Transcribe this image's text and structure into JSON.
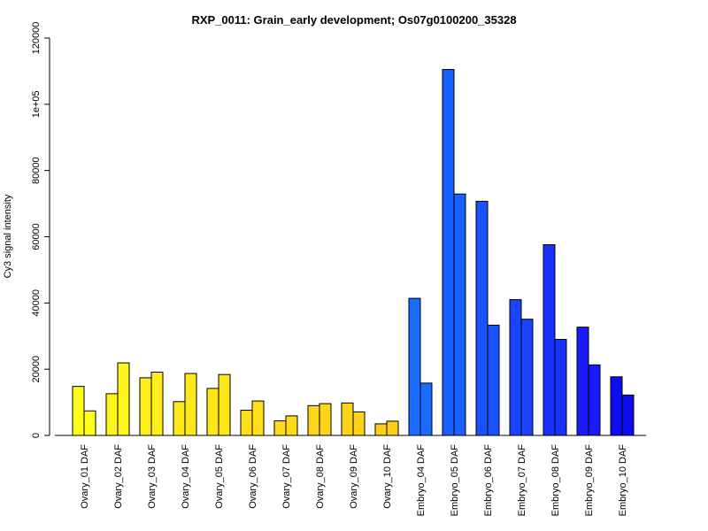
{
  "chart_data": {
    "type": "bar",
    "title": "RXP_0011: Grain_early development; Os07g0100200_35328",
    "xlabel": "",
    "ylabel": "Cy3 signal intensity",
    "ylim": [
      0,
      120000
    ],
    "yticks": [
      0,
      20000,
      40000,
      60000,
      80000,
      100000,
      120000
    ],
    "ytick_labels": [
      "0",
      "20000",
      "40000",
      "60000",
      "80000",
      "1e+05",
      "120000"
    ],
    "categories": [
      "Ovary_01 DAF",
      "Ovary_02 DAF",
      "Ovary_03 DAF",
      "Ovary_04 DAF",
      "Ovary_05 DAF",
      "Ovary_06 DAF",
      "Ovary_07 DAF",
      "Ovary_08 DAF",
      "Ovary_09 DAF",
      "Ovary_10 DAF",
      "Embryo_04 DAF",
      "Embryo_05 DAF",
      "Embryo_06 DAF",
      "Embryo_07 DAF",
      "Embryo_08 DAF",
      "Embryo_09 DAF",
      "Embryo_10 DAF"
    ],
    "colors": [
      "#FFFF1A",
      "#FFF51C",
      "#FFEE1C",
      "#FFE81C",
      "#FFE51C",
      "#FFDF1C",
      "#FFDA1C",
      "#FFD51C",
      "#FFD21C",
      "#FFCC1A",
      "#1A6BFF",
      "#1A5FFF",
      "#1A52FF",
      "#1A43FF",
      "#1A30FF",
      "#1A1AFF",
      "#0D0DF0"
    ],
    "series": [
      {
        "values": [
          14800,
          12600,
          17400,
          10200,
          14200,
          7600,
          4400,
          9000,
          9800,
          3500,
          41400,
          110500,
          70700,
          41000,
          57600,
          32700,
          17700
        ]
      },
      {
        "values": [
          7400,
          21900,
          19100,
          18700,
          18400,
          10400,
          5900,
          9600,
          7100,
          4300,
          15800,
          72900,
          33300,
          35100,
          29000,
          21300,
          12200
        ]
      }
    ],
    "grid": false,
    "legend": "none"
  }
}
